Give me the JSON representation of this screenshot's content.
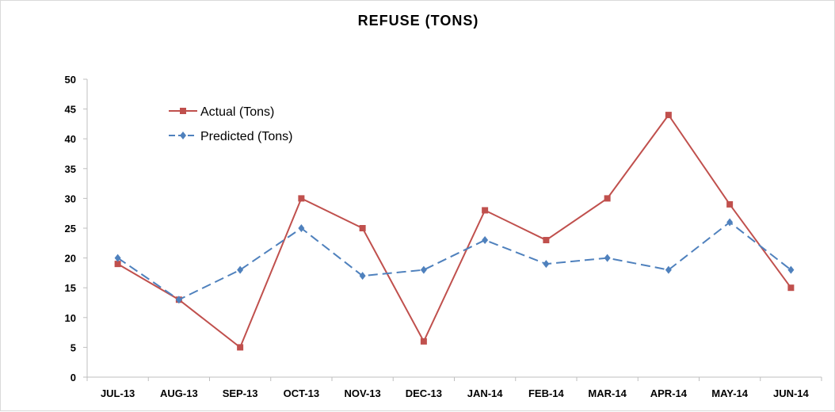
{
  "chart_data": {
    "type": "line",
    "title": "REFUSE (TONS)",
    "xlabel": "",
    "ylabel": "",
    "categories": [
      "JUL-13",
      "AUG-13",
      "SEP-13",
      "OCT-13",
      "NOV-13",
      "DEC-13",
      "JAN-14",
      "FEB-14",
      "MAR-14",
      "APR-14",
      "MAY-14",
      "JUN-14"
    ],
    "ylim": [
      0,
      50
    ],
    "yticks": [
      0,
      5,
      10,
      15,
      20,
      25,
      30,
      35,
      40,
      45,
      50
    ],
    "grid": false,
    "legend_position": "top-left",
    "series": [
      {
        "name": "Actual (Tons)",
        "color": "#c0504d",
        "marker": "square",
        "line_style": "solid",
        "values": [
          19,
          13,
          5,
          30,
          25,
          6,
          28,
          23,
          30,
          44,
          29,
          15
        ]
      },
      {
        "name": "Predicted (Tons)",
        "color": "#4f81bd",
        "marker": "diamond",
        "line_style": "dashed",
        "values": [
          20,
          13,
          18,
          25,
          17,
          18,
          23,
          19,
          20,
          18,
          26,
          18
        ]
      }
    ]
  }
}
